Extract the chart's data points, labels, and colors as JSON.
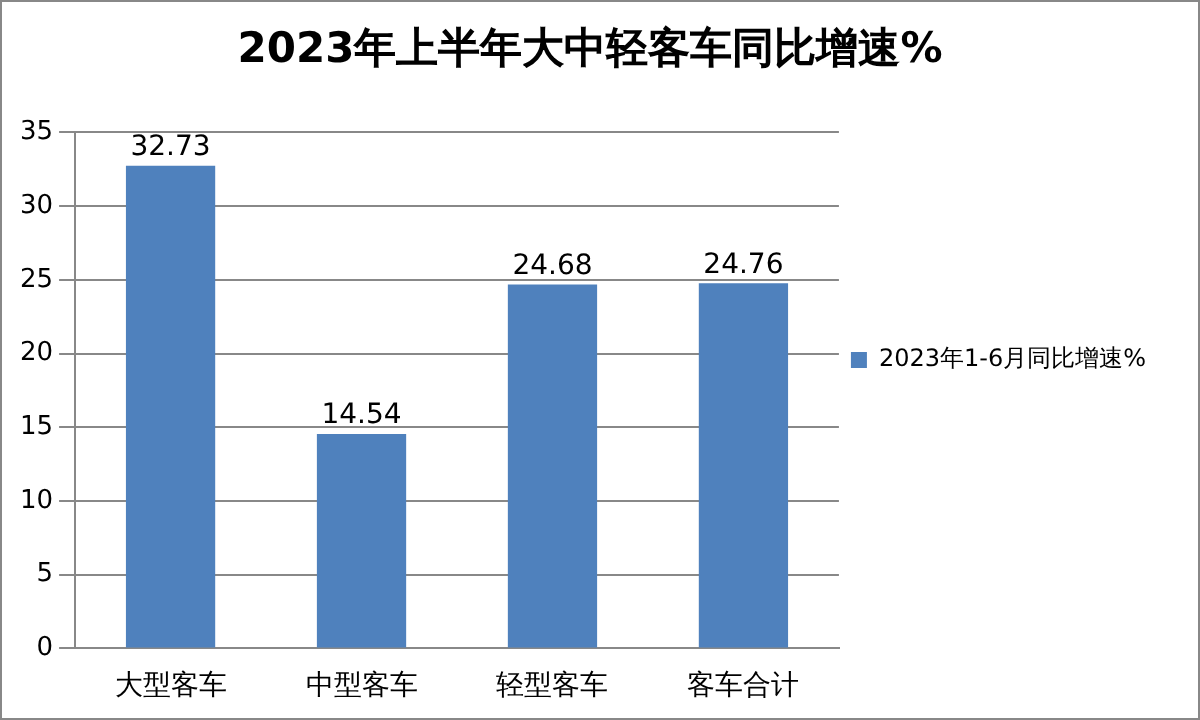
{
  "chart_data": {
    "type": "bar",
    "title": "2023年上半年大中轻客车同比增速%",
    "categories": [
      "大型客车",
      "中型客车",
      "轻型客车",
      "客车合计"
    ],
    "series": [
      {
        "name": "2023年1-6月同比增速%",
        "color": "#4f81bd",
        "values": [
          32.73,
          14.54,
          24.68,
          24.76
        ]
      }
    ],
    "ylim": [
      0,
      35
    ],
    "yticks": [
      0,
      5,
      10,
      15,
      20,
      25,
      30,
      35
    ],
    "grid": "y",
    "legend": "right",
    "data_labels": true
  }
}
